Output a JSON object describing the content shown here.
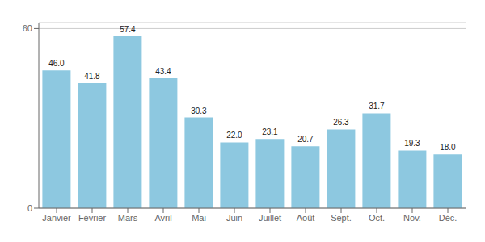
{
  "chart_data": {
    "type": "bar",
    "categories": [
      "Janvier",
      "Février",
      "Mars",
      "Avril",
      "Mai",
      "Juin",
      "Juillet",
      "Août",
      "Sept.",
      "Oct.",
      "Nov.",
      "Déc."
    ],
    "values": [
      46.0,
      41.8,
      57.4,
      43.4,
      30.3,
      22.0,
      23.1,
      20.7,
      26.3,
      31.7,
      19.3,
      18.0
    ],
    "value_labels": [
      "46.0",
      "41.8",
      "57.4",
      "43.4",
      "30.3",
      "22.0",
      "23.1",
      "20.7",
      "26.3",
      "31.7",
      "19.3",
      "18.0"
    ],
    "data_labels": true,
    "color": "#8DC8E0",
    "ylim": [
      0,
      62
    ],
    "yticks": [
      0,
      60
    ],
    "grid": true
  }
}
